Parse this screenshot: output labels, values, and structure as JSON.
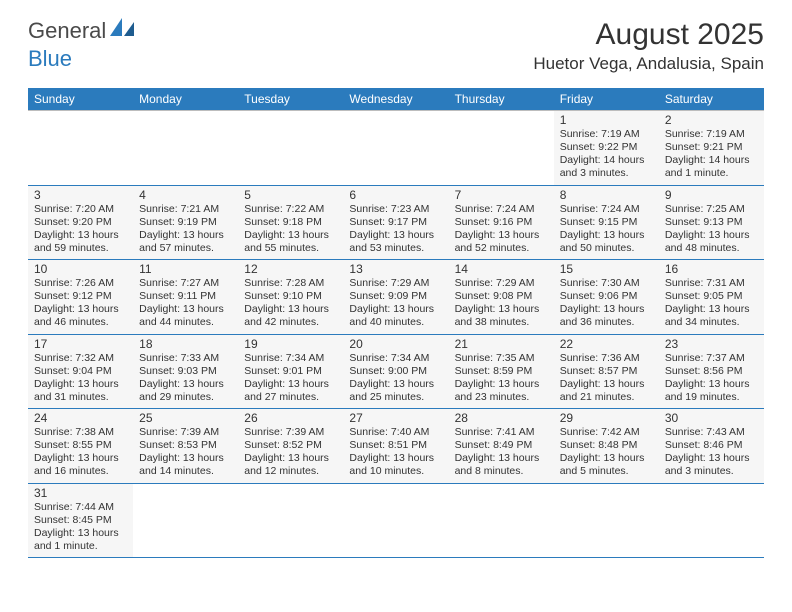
{
  "logo": {
    "text1": "General",
    "text2": "Blue"
  },
  "title": "August 2025",
  "location": "Huetor Vega, Andalusia, Spain",
  "colors": {
    "header_bg": "#2b7bbd",
    "header_text": "#ffffff",
    "cell_bg": "#f6f6f6",
    "border_top": "#bdbdbd",
    "border_bottom": "#2b7bbd",
    "text": "#333333",
    "background": "#ffffff"
  },
  "day_headers": [
    "Sunday",
    "Monday",
    "Tuesday",
    "Wednesday",
    "Thursday",
    "Friday",
    "Saturday"
  ],
  "weeks": [
    [
      null,
      null,
      null,
      null,
      null,
      {
        "n": "1",
        "sunrise": "Sunrise: 7:19 AM",
        "sunset": "Sunset: 9:22 PM",
        "daylight": "Daylight: 14 hours and 3 minutes."
      },
      {
        "n": "2",
        "sunrise": "Sunrise: 7:19 AM",
        "sunset": "Sunset: 9:21 PM",
        "daylight": "Daylight: 14 hours and 1 minute."
      }
    ],
    [
      {
        "n": "3",
        "sunrise": "Sunrise: 7:20 AM",
        "sunset": "Sunset: 9:20 PM",
        "daylight": "Daylight: 13 hours and 59 minutes."
      },
      {
        "n": "4",
        "sunrise": "Sunrise: 7:21 AM",
        "sunset": "Sunset: 9:19 PM",
        "daylight": "Daylight: 13 hours and 57 minutes."
      },
      {
        "n": "5",
        "sunrise": "Sunrise: 7:22 AM",
        "sunset": "Sunset: 9:18 PM",
        "daylight": "Daylight: 13 hours and 55 minutes."
      },
      {
        "n": "6",
        "sunrise": "Sunrise: 7:23 AM",
        "sunset": "Sunset: 9:17 PM",
        "daylight": "Daylight: 13 hours and 53 minutes."
      },
      {
        "n": "7",
        "sunrise": "Sunrise: 7:24 AM",
        "sunset": "Sunset: 9:16 PM",
        "daylight": "Daylight: 13 hours and 52 minutes."
      },
      {
        "n": "8",
        "sunrise": "Sunrise: 7:24 AM",
        "sunset": "Sunset: 9:15 PM",
        "daylight": "Daylight: 13 hours and 50 minutes."
      },
      {
        "n": "9",
        "sunrise": "Sunrise: 7:25 AM",
        "sunset": "Sunset: 9:13 PM",
        "daylight": "Daylight: 13 hours and 48 minutes."
      }
    ],
    [
      {
        "n": "10",
        "sunrise": "Sunrise: 7:26 AM",
        "sunset": "Sunset: 9:12 PM",
        "daylight": "Daylight: 13 hours and 46 minutes."
      },
      {
        "n": "11",
        "sunrise": "Sunrise: 7:27 AM",
        "sunset": "Sunset: 9:11 PM",
        "daylight": "Daylight: 13 hours and 44 minutes."
      },
      {
        "n": "12",
        "sunrise": "Sunrise: 7:28 AM",
        "sunset": "Sunset: 9:10 PM",
        "daylight": "Daylight: 13 hours and 42 minutes."
      },
      {
        "n": "13",
        "sunrise": "Sunrise: 7:29 AM",
        "sunset": "Sunset: 9:09 PM",
        "daylight": "Daylight: 13 hours and 40 minutes."
      },
      {
        "n": "14",
        "sunrise": "Sunrise: 7:29 AM",
        "sunset": "Sunset: 9:08 PM",
        "daylight": "Daylight: 13 hours and 38 minutes."
      },
      {
        "n": "15",
        "sunrise": "Sunrise: 7:30 AM",
        "sunset": "Sunset: 9:06 PM",
        "daylight": "Daylight: 13 hours and 36 minutes."
      },
      {
        "n": "16",
        "sunrise": "Sunrise: 7:31 AM",
        "sunset": "Sunset: 9:05 PM",
        "daylight": "Daylight: 13 hours and 34 minutes."
      }
    ],
    [
      {
        "n": "17",
        "sunrise": "Sunrise: 7:32 AM",
        "sunset": "Sunset: 9:04 PM",
        "daylight": "Daylight: 13 hours and 31 minutes."
      },
      {
        "n": "18",
        "sunrise": "Sunrise: 7:33 AM",
        "sunset": "Sunset: 9:03 PM",
        "daylight": "Daylight: 13 hours and 29 minutes."
      },
      {
        "n": "19",
        "sunrise": "Sunrise: 7:34 AM",
        "sunset": "Sunset: 9:01 PM",
        "daylight": "Daylight: 13 hours and 27 minutes."
      },
      {
        "n": "20",
        "sunrise": "Sunrise: 7:34 AM",
        "sunset": "Sunset: 9:00 PM",
        "daylight": "Daylight: 13 hours and 25 minutes."
      },
      {
        "n": "21",
        "sunrise": "Sunrise: 7:35 AM",
        "sunset": "Sunset: 8:59 PM",
        "daylight": "Daylight: 13 hours and 23 minutes."
      },
      {
        "n": "22",
        "sunrise": "Sunrise: 7:36 AM",
        "sunset": "Sunset: 8:57 PM",
        "daylight": "Daylight: 13 hours and 21 minutes."
      },
      {
        "n": "23",
        "sunrise": "Sunrise: 7:37 AM",
        "sunset": "Sunset: 8:56 PM",
        "daylight": "Daylight: 13 hours and 19 minutes."
      }
    ],
    [
      {
        "n": "24",
        "sunrise": "Sunrise: 7:38 AM",
        "sunset": "Sunset: 8:55 PM",
        "daylight": "Daylight: 13 hours and 16 minutes."
      },
      {
        "n": "25",
        "sunrise": "Sunrise: 7:39 AM",
        "sunset": "Sunset: 8:53 PM",
        "daylight": "Daylight: 13 hours and 14 minutes."
      },
      {
        "n": "26",
        "sunrise": "Sunrise: 7:39 AM",
        "sunset": "Sunset: 8:52 PM",
        "daylight": "Daylight: 13 hours and 12 minutes."
      },
      {
        "n": "27",
        "sunrise": "Sunrise: 7:40 AM",
        "sunset": "Sunset: 8:51 PM",
        "daylight": "Daylight: 13 hours and 10 minutes."
      },
      {
        "n": "28",
        "sunrise": "Sunrise: 7:41 AM",
        "sunset": "Sunset: 8:49 PM",
        "daylight": "Daylight: 13 hours and 8 minutes."
      },
      {
        "n": "29",
        "sunrise": "Sunrise: 7:42 AM",
        "sunset": "Sunset: 8:48 PM",
        "daylight": "Daylight: 13 hours and 5 minutes."
      },
      {
        "n": "30",
        "sunrise": "Sunrise: 7:43 AM",
        "sunset": "Sunset: 8:46 PM",
        "daylight": "Daylight: 13 hours and 3 minutes."
      }
    ],
    [
      {
        "n": "31",
        "sunrise": "Sunrise: 7:44 AM",
        "sunset": "Sunset: 8:45 PM",
        "daylight": "Daylight: 13 hours and 1 minute."
      },
      null,
      null,
      null,
      null,
      null,
      null
    ]
  ]
}
